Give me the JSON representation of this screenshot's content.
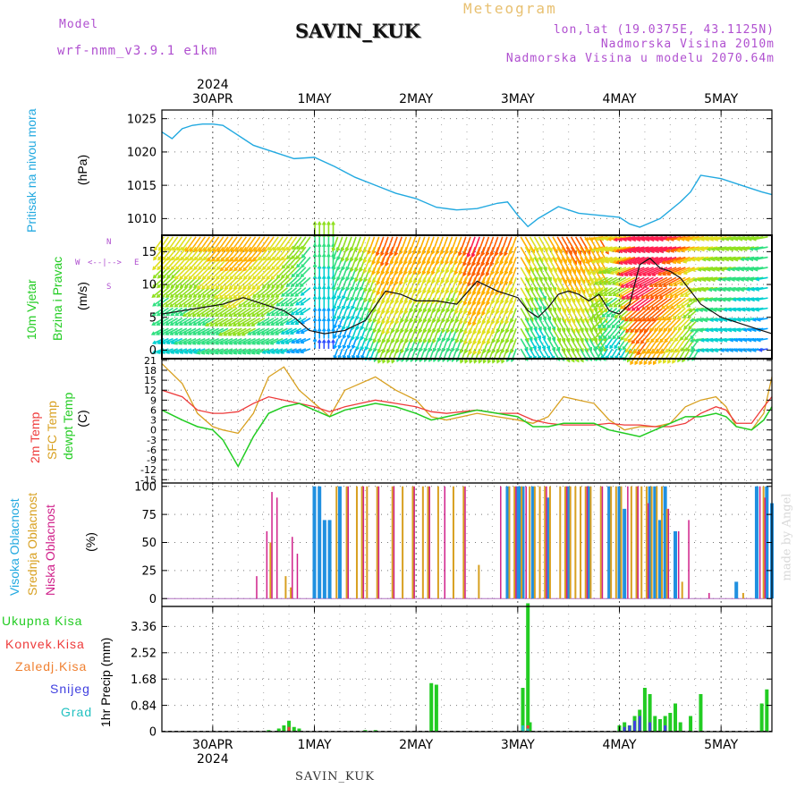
{
  "header": {
    "model_label": "Model",
    "model_name": "wrf-nmm_v3.9.1  e1km",
    "station": "SAVIN_KUK",
    "title": "Meteogram",
    "coords": "lon,lat (19.0375E, 43.1125N)",
    "elevation": "Nadmorska Visina 2010m",
    "model_elevation": "Nadmorska Visina u modelu 2070.64m"
  },
  "footer": {
    "station": "SAVIN_KUK"
  },
  "watermark": "made by Angel",
  "colors": {
    "pressure": "#22a9e0",
    "temp2m": "#ee3a3a",
    "sfc": "#d8a020",
    "dewpt": "#22cc22",
    "high": "#2090e0",
    "mid": "#d8a020",
    "low": "#d0208a",
    "total": "#22cc22",
    "conv": "#ee3a3a",
    "frz": "#f08030",
    "snow": "#4040e0",
    "hail": "#20c0c0"
  },
  "time_axis": {
    "top_year": "2024",
    "bottom_year": "2024",
    "days": [
      "30APR",
      "1MAY",
      "2MAY",
      "3MAY",
      "4MAY",
      "5MAY"
    ],
    "range_days": [
      -0.5,
      5.5
    ]
  },
  "panels": {
    "pressure": {
      "name": "Pritisak na nivou mora",
      "unit": "(hPa)",
      "ticks": [
        "1025",
        "1020",
        "1015",
        "1010"
      ]
    },
    "wind": {
      "name": "10m Vjetar",
      "name2": "Brzina i Pravac",
      "unit": "(m/s)",
      "ticks": [
        "15",
        "10",
        "5",
        "0"
      ],
      "compass_n": "N",
      "compass_s": "S",
      "compass_w": "W",
      "compass_e": "E"
    },
    "temp": {
      "name1": "2m Temp",
      "name2": "SFC Temp",
      "name3": "dewpt Temp",
      "unit": "(C)",
      "ticks": [
        "21",
        "18",
        "15",
        "12",
        "9",
        "6",
        "3",
        "0",
        "-3",
        "-6",
        "-9",
        "-12",
        "-15"
      ]
    },
    "cloud": {
      "name1": "Visoka Oblacnost",
      "name2": "Srednja Oblacnost",
      "name3": "Niska Oblacnost",
      "unit": "(%)",
      "ticks": [
        "100",
        "75",
        "50",
        "25",
        "0"
      ]
    },
    "precip": {
      "name": "1hr Precip (mm)",
      "ticks": [
        "3.36",
        "2.52",
        "1.68",
        "0.84",
        "0"
      ],
      "legend": [
        "Ukupna Kisa",
        "Konvek.Kisa",
        "Zaledj.Kisa",
        "Snijeg",
        "Grad"
      ]
    }
  },
  "chart_data": [
    {
      "type": "line",
      "title": "Pritisak na nivou mora",
      "ylabel": "(hPa)",
      "ylim": [
        1007.5,
        1026.3
      ],
      "x": [
        -0.5,
        -0.4,
        -0.3,
        -0.2,
        -0.1,
        0.0,
        0.1,
        0.2,
        0.3,
        0.4,
        0.6,
        0.8,
        1.0,
        1.2,
        1.4,
        1.6,
        1.8,
        2.0,
        2.2,
        2.4,
        2.6,
        2.8,
        2.9,
        3.0,
        3.1,
        3.2,
        3.4,
        3.6,
        3.8,
        4.0,
        4.1,
        4.2,
        4.4,
        4.6,
        4.7,
        4.8,
        5.0,
        5.2,
        5.4,
        5.5
      ],
      "series": [
        {
          "values": [
            1023,
            1022,
            1023.5,
            1024,
            1024.2,
            1024.2,
            1024,
            1023,
            1022,
            1021,
            1020,
            1019,
            1019.2,
            1017.8,
            1016.2,
            1015,
            1013.8,
            1013,
            1011.7,
            1011.3,
            1011.5,
            1012.3,
            1012.5,
            1010.5,
            1008.8,
            1010,
            1011.8,
            1010.8,
            1010.5,
            1010.2,
            1009.2,
            1008.7,
            1010,
            1012.5,
            1014,
            1016.5,
            1016,
            1015,
            1014,
            1013.6
          ]
        }
      ]
    },
    {
      "type": "line",
      "title": "10m Vjetar Brzina i Pravac",
      "ylabel": "(m/s)",
      "ylim": [
        -1.3,
        17.5
      ],
      "x": [
        -0.5,
        -0.3,
        -0.1,
        0.1,
        0.3,
        0.5,
        0.7,
        0.8,
        0.95,
        1.1,
        1.3,
        1.5,
        1.7,
        1.85,
        2.0,
        2.2,
        2.4,
        2.6,
        2.8,
        3.0,
        3.1,
        3.2,
        3.3,
        3.4,
        3.5,
        3.6,
        3.7,
        3.8,
        3.9,
        4.0,
        4.1,
        4.2,
        4.3,
        4.4,
        4.5,
        4.6,
        4.7,
        4.8,
        5.0,
        5.2,
        5.4,
        5.5
      ],
      "series": [
        {
          "values": [
            5.5,
            6,
            6.5,
            7,
            8,
            7,
            6,
            5,
            3,
            2.5,
            3,
            4.5,
            9,
            8.5,
            7.5,
            7.5,
            7,
            10.5,
            9,
            8,
            6,
            5,
            6.5,
            8.5,
            9,
            8.5,
            7.5,
            8.5,
            6,
            5.5,
            7,
            13,
            14,
            12.5,
            12,
            11,
            9,
            7,
            5,
            4,
            3,
            2.5
          ]
        }
      ]
    },
    {
      "type": "line",
      "title": "2m Temp / SFC Temp / dewpt Temp",
      "ylabel": "(C)",
      "ylim": [
        -16,
        21.5
      ],
      "x": [
        -0.5,
        -0.3,
        -0.15,
        0.0,
        0.1,
        0.25,
        0.4,
        0.55,
        0.7,
        0.85,
        1.0,
        1.15,
        1.3,
        1.45,
        1.6,
        1.8,
        2.0,
        2.15,
        2.3,
        2.45,
        2.6,
        2.8,
        3.0,
        3.15,
        3.3,
        3.45,
        3.6,
        3.75,
        3.9,
        4.05,
        4.2,
        4.35,
        4.5,
        4.65,
        4.8,
        4.95,
        5.05,
        5.15,
        5.3,
        5.42,
        5.5
      ],
      "series": [
        {
          "name": "2m Temp",
          "values": [
            12,
            10,
            6,
            5,
            5,
            5.5,
            8,
            10,
            9,
            8,
            7,
            5.5,
            7,
            8,
            9,
            8,
            7,
            5.5,
            5,
            5.5,
            6,
            5,
            5,
            3,
            2,
            1.5,
            1.5,
            1.5,
            2,
            1.5,
            1.5,
            1,
            1,
            2,
            5,
            7,
            6,
            2,
            2,
            7,
            10
          ]
        },
        {
          "name": "SFC Temp",
          "values": [
            20,
            14,
            5,
            1,
            0,
            -1,
            5,
            16,
            19,
            12,
            8,
            4,
            12,
            14,
            16,
            12,
            9,
            4,
            3,
            4,
            5,
            4,
            3,
            2,
            4,
            10,
            9,
            8,
            3,
            0,
            1,
            1,
            2,
            7,
            9,
            10,
            7,
            1,
            0,
            5,
            16
          ]
        },
        {
          "name": "dewpt Temp",
          "values": [
            6,
            3,
            1,
            0,
            -3,
            -11,
            -2,
            5,
            7,
            8,
            6,
            4,
            6,
            7,
            8,
            7,
            5,
            3,
            4,
            5,
            6,
            5,
            4,
            1,
            1,
            2,
            2,
            2,
            0,
            -1,
            -2,
            0,
            2,
            4,
            4,
            5,
            4,
            1,
            0,
            3,
            7
          ]
        }
      ]
    },
    {
      "type": "bar",
      "title": "Visoka / Srednja / Niska Oblacnost",
      "ylabel": "(%)",
      "ylim": [
        -7,
        103
      ],
      "series": [
        {
          "name": "Visoka Oblacnost",
          "x": [
            1.0,
            1.05,
            1.1,
            1.15,
            1.25,
            2.9,
            3.0,
            3.02,
            3.05,
            3.15,
            3.3,
            3.5,
            3.7,
            3.9,
            4.0,
            4.05,
            4.3,
            4.35,
            4.4,
            4.45,
            4.55,
            5.15,
            5.35,
            5.45,
            5.5
          ],
          "values": [
            100,
            100,
            70,
            70,
            100,
            100,
            100,
            100,
            100,
            100,
            90,
            100,
            100,
            100,
            100,
            80,
            100,
            100,
            70,
            100,
            60,
            15,
            100,
            100,
            85
          ]
        },
        {
          "name": "Srednja Oblacnost",
          "x": [
            0.55,
            0.7,
            0.75,
            1.2,
            1.3,
            1.4,
            1.45,
            1.5,
            1.6,
            1.75,
            1.85,
            1.95,
            2.05,
            2.1,
            2.2,
            2.35,
            2.45,
            2.6,
            2.9,
            2.95,
            3.02,
            3.1,
            3.15,
            3.2,
            3.25,
            3.3,
            3.4,
            3.45,
            3.5,
            3.55,
            3.6,
            3.65,
            3.7,
            3.8,
            3.9,
            3.95,
            4.0,
            4.1,
            4.15,
            4.2,
            4.25,
            4.3,
            4.35,
            4.4,
            4.45,
            4.6,
            5.2,
            5.4
          ],
          "values": [
            50,
            20,
            10,
            100,
            100,
            100,
            100,
            100,
            100,
            100,
            100,
            100,
            100,
            100,
            100,
            100,
            100,
            30,
            100,
            100,
            100,
            100,
            100,
            100,
            100,
            100,
            100,
            100,
            100,
            100,
            100,
            100,
            100,
            100,
            100,
            100,
            100,
            100,
            100,
            100,
            100,
            100,
            100,
            100,
            80,
            15,
            5,
            100
          ]
        },
        {
          "name": "Niska Oblacnost",
          "x": [
            0.45,
            0.55,
            0.6,
            0.65,
            0.8,
            0.85,
            1.35,
            1.5,
            1.65,
            1.8,
            2.0,
            2.15,
            2.3,
            2.5,
            2.85,
            3.0,
            3.1,
            3.3,
            3.5,
            3.7,
            3.85,
            4.1,
            4.2,
            4.3,
            4.5,
            4.6,
            4.7,
            4.9,
            5.4,
            5.45
          ],
          "values": [
            20,
            60,
            95,
            90,
            55,
            40,
            100,
            100,
            100,
            100,
            100,
            100,
            100,
            100,
            100,
            100,
            100,
            100,
            100,
            100,
            100,
            100,
            100,
            85,
            80,
            60,
            70,
            5,
            100,
            90
          ]
        }
      ]
    },
    {
      "type": "bar",
      "title": "1hr Precip (mm)",
      "ylabel": "1hr Precip (mm)",
      "ylim": [
        0,
        4.0
      ],
      "series": [
        {
          "name": "Ukupna Kisa",
          "x": [
            0.55,
            0.65,
            0.7,
            0.75,
            0.8,
            0.85,
            1.5,
            1.6,
            2.15,
            2.2,
            3.05,
            3.1,
            3.12,
            4.0,
            4.05,
            4.1,
            4.15,
            4.2,
            4.25,
            4.3,
            4.35,
            4.4,
            4.45,
            4.5,
            4.55,
            4.6,
            4.7,
            4.8,
            5.4,
            5.45
          ],
          "values": [
            0.05,
            0.1,
            0.2,
            0.35,
            0.15,
            0.1,
            0.05,
            0.05,
            1.55,
            1.5,
            1.4,
            4.1,
            0.3,
            0.2,
            0.3,
            0.2,
            0.5,
            0.7,
            1.4,
            1.2,
            0.5,
            0.4,
            0.5,
            0.6,
            0.9,
            0.3,
            0.5,
            1.2,
            0.9,
            1.35
          ]
        },
        {
          "name": "Konvek.Kisa",
          "x": [
            0.75,
            3.1
          ],
          "values": [
            0.15,
            0.2
          ]
        },
        {
          "name": "Snijeg",
          "x": [
            4.05,
            4.1,
            4.15,
            4.2,
            4.3,
            4.45
          ],
          "values": [
            0.15,
            0.2,
            0.35,
            0.5,
            0.3,
            0.2
          ]
        },
        {
          "name": "Grad",
          "x": [
            3.05,
            3.1
          ],
          "values": [
            0.2,
            0.1
          ]
        }
      ]
    }
  ]
}
